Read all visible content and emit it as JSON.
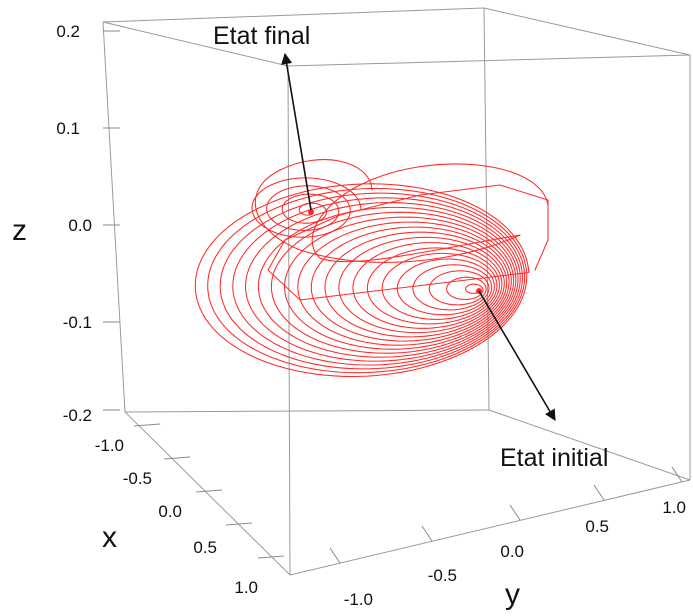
{
  "colors": {
    "curve": "#ff2a2a",
    "axes": "#9a9a9a",
    "text": "#111111"
  },
  "chart_data": {
    "type": "line",
    "projection": "3d",
    "title": "",
    "axis_titles": {
      "x": "x",
      "y": "y",
      "z": "z"
    },
    "ticks": {
      "z": [
        "0.2",
        "0.1",
        "0.0",
        "-0.1",
        "-0.2"
      ],
      "x": [
        "-1.0",
        "-0.5",
        "0.0",
        "0.5",
        "1.0"
      ],
      "y": [
        "-1.0",
        "-0.5",
        "0.0",
        "0.5",
        "1.0"
      ]
    },
    "xlim": [
      -1.0,
      1.0
    ],
    "ylim": [
      -1.0,
      1.0
    ],
    "zlim": [
      -0.2,
      0.2
    ],
    "grid": false,
    "series": [
      {
        "style": "red line, spiral trajectory",
        "start_point": {
          "x": 0.0,
          "y": 0.0,
          "z": -0.07
        },
        "end_point": {
          "x": -0.5,
          "y": 0.0,
          "z": 0.01
        },
        "initial_spiral": {
          "turns": 20,
          "max_radius_y": 0.55,
          "max_radius_z": 0.1
        },
        "final_spiral": {
          "turns": 4,
          "max_radius_y": 0.3,
          "max_radius_z": 0.04
        }
      }
    ],
    "annotations": [
      {
        "text": "Etat final",
        "points_to": "end_point"
      },
      {
        "text": "Etat initial",
        "points_to": "start_point"
      }
    ]
  }
}
